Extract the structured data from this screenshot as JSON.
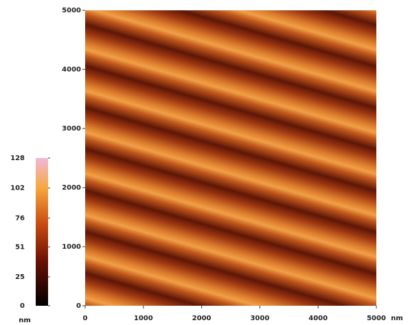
{
  "chart_data": {
    "type": "image",
    "xlim": [
      0,
      5000
    ],
    "ylim": [
      0,
      5000
    ],
    "xticks": [
      0,
      1000,
      2000,
      3000,
      4000,
      5000
    ],
    "yticks": [
      0,
      1000,
      2000,
      3000,
      4000,
      5000
    ],
    "x_unit": "nm",
    "colorbar": {
      "lim": [
        0,
        128
      ],
      "ticks": [
        0,
        25,
        51,
        76,
        102,
        128
      ],
      "unit": "nm"
    }
  }
}
